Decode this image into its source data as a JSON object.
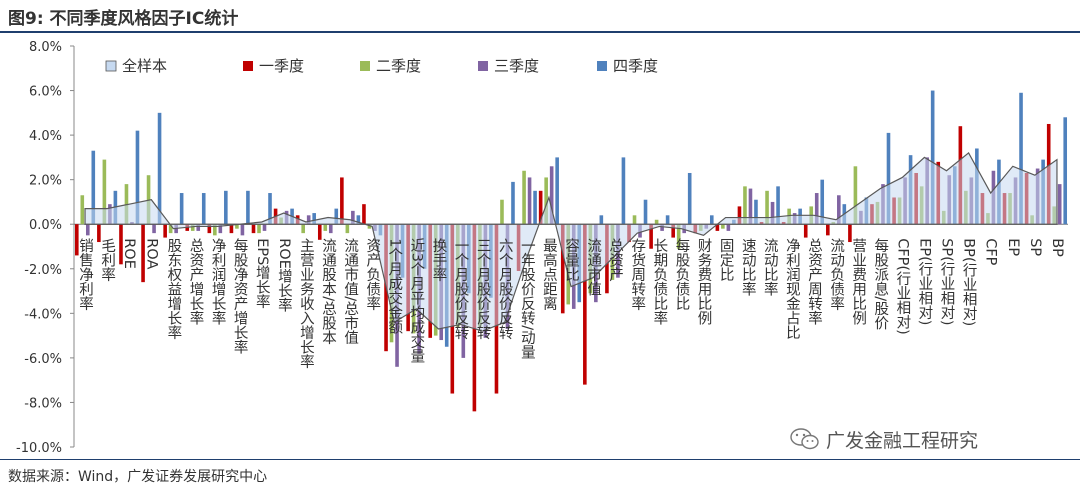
{
  "header": {
    "title": "图9:  不同季度风格因子IC统计"
  },
  "footer": {
    "source": "数据来源：Wind，广发证券发展研究中心"
  },
  "watermark": {
    "text": "广发金融工程研究",
    "icon": "wechat-icon"
  },
  "chart_data": {
    "type": "bar",
    "title": "",
    "ylim": [
      -0.1,
      0.08
    ],
    "y_ticks": [
      "8.0%",
      "6.0%",
      "4.0%",
      "2.0%",
      "0.0%",
      "-2.0%",
      "-4.0%",
      "-6.0%",
      "-8.0%",
      "-10.0%"
    ],
    "legend_position": "top",
    "categories": [
      "销售净利率",
      "毛利率",
      "ROE",
      "ROA",
      "股东权益增长率",
      "总资产增长率",
      "净利润增长率",
      "每股净资产增长率",
      "EPS增长率",
      "ROE增长率",
      "主营业务收入增长率",
      "流通股本/总股本",
      "流通市值/总市值",
      "资产负债率",
      "1个月成交金额",
      "近3个月平均成交量",
      "换手率",
      "一个月股价反转",
      "三个月股价反转",
      "六个月股价反转",
      "一年股价反转/动量",
      "最高点距离",
      "容量比",
      "流通市值",
      "总资产",
      "存货周转率",
      "长期负债比率",
      "每股负债比",
      "财务费用比例",
      "固定比",
      "速动比率",
      "流动比率",
      "净利润现金占比",
      "总资产周转率",
      "流动负债率",
      "营业费用比例",
      "每股派息/股价",
      "CFP(行业相对)",
      "EP(行业相对)",
      "SP(行业相对)",
      "BP(行业相对)",
      "CFP",
      "EP",
      "SP",
      "BP"
    ],
    "series": [
      {
        "name": "全样本",
        "color": "#c6d9f0",
        "values": [
          0.007,
          0.007,
          0.009,
          0.011,
          -0.002,
          -0.001,
          -0.001,
          0.0,
          0.001,
          0.005,
          0.001,
          0.003,
          0.002,
          -0.001,
          -0.044,
          -0.038,
          -0.047,
          -0.045,
          -0.048,
          -0.044,
          -0.015,
          0.012,
          -0.028,
          -0.024,
          -0.014,
          -0.004,
          -0.001,
          -0.002,
          -0.005,
          0.003,
          0.003,
          0.003,
          0.004,
          0.004,
          0.002,
          0.009,
          0.016,
          0.021,
          0.03,
          0.024,
          0.032,
          0.014,
          0.026,
          0.022,
          0.029
        ]
      },
      {
        "name": "一季度",
        "color": "#c00000",
        "values": [
          -0.014,
          -0.008,
          -0.018,
          -0.026,
          -0.006,
          -0.003,
          -0.004,
          -0.004,
          -0.004,
          0.007,
          0.004,
          -0.007,
          0.021,
          0.009,
          -0.057,
          -0.048,
          -0.051,
          -0.076,
          -0.084,
          -0.076,
          -0.021,
          0.015,
          -0.04,
          -0.072,
          -0.031,
          -0.008,
          -0.011,
          -0.006,
          -0.004,
          -0.003,
          0.008,
          0.001,
          0.001,
          -0.006,
          -0.005,
          -0.008,
          0.009,
          0.012,
          0.023,
          0.028,
          0.044,
          0.014,
          0.014,
          0.023,
          0.045
        ]
      },
      {
        "name": "二季度",
        "color": "#9bbb59",
        "values": [
          0.013,
          0.029,
          0.018,
          0.022,
          -0.004,
          -0.003,
          -0.005,
          -0.002,
          -0.004,
          0.003,
          -0.004,
          -0.003,
          -0.004,
          -0.002,
          -0.053,
          -0.049,
          -0.05,
          -0.046,
          -0.046,
          0.011,
          0.024,
          0.021,
          -0.036,
          -0.031,
          -0.025,
          0.004,
          0.002,
          -0.011,
          -0.003,
          -0.002,
          0.017,
          0.015,
          0.007,
          0.008,
          0.001,
          0.026,
          0.01,
          0.012,
          0.017,
          0.006,
          0.015,
          0.005,
          0.014,
          0.004,
          0.008
        ]
      },
      {
        "name": "三季度",
        "color": "#8064a2",
        "values": [
          -0.005,
          0.009,
          0.001,
          -0.004,
          -0.004,
          -0.003,
          -0.004,
          -0.005,
          -0.003,
          0.006,
          0.004,
          -0.004,
          0.006,
          -0.003,
          -0.064,
          -0.058,
          -0.052,
          -0.06,
          -0.051,
          -0.047,
          0.021,
          0.026,
          -0.038,
          -0.035,
          -0.024,
          -0.006,
          -0.003,
          -0.004,
          -0.002,
          -0.003,
          0.016,
          0.01,
          0.005,
          0.014,
          0.013,
          0.006,
          0.018,
          0.021,
          0.03,
          0.022,
          0.021,
          0.024,
          0.021,
          0.025,
          0.018
        ]
      },
      {
        "name": "四季度",
        "color": "#4f81bd",
        "values": [
          0.033,
          0.015,
          0.042,
          0.05,
          0.014,
          0.014,
          0.015,
          0.015,
          0.014,
          0.007,
          0.005,
          0.007,
          0.004,
          -0.005,
          -0.024,
          -0.02,
          -0.055,
          -0.031,
          -0.033,
          0.019,
          0.015,
          0.03,
          -0.035,
          0.004,
          0.03,
          0.011,
          0.004,
          0.023,
          0.004,
          0.002,
          0.011,
          0.017,
          0.007,
          0.02,
          0.009,
          0.012,
          0.041,
          0.031,
          0.06,
          0.026,
          0.034,
          0.029,
          0.059,
          0.029,
          0.048
        ]
      }
    ]
  }
}
